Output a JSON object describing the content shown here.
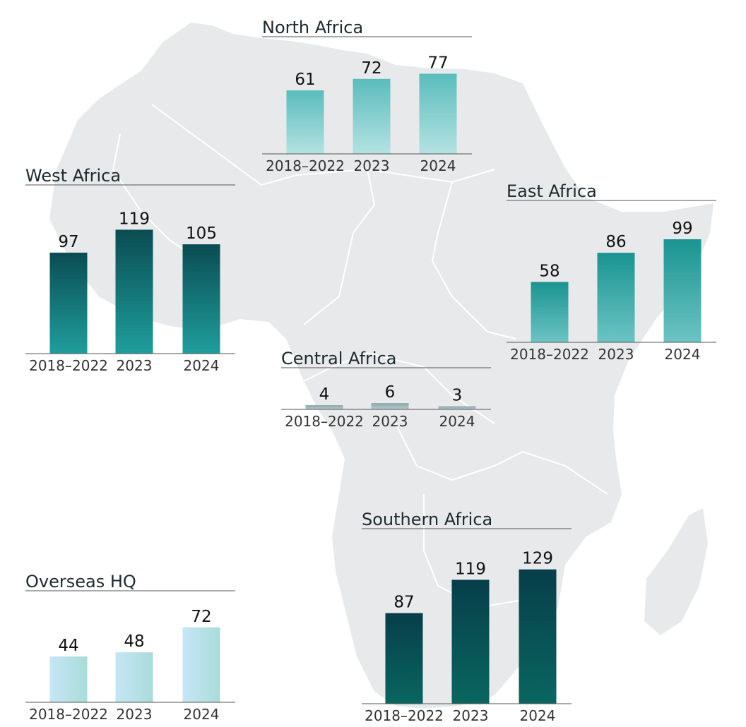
{
  "chart_data": [
    {
      "type": "bar",
      "title": "North Africa",
      "categories": [
        "2018–2022",
        "2023",
        "2024"
      ],
      "values": [
        61,
        72,
        77
      ],
      "value_labels": [
        "61",
        "72",
        "77"
      ],
      "gradient": [
        "#5bbcbc",
        "#b4e2e2"
      ]
    },
    {
      "type": "bar",
      "title": "West Africa",
      "categories": [
        "2018–2022",
        "2023",
        "2024"
      ],
      "values": [
        97,
        119,
        105
      ],
      "value_labels": [
        "97",
        "119",
        "105"
      ],
      "gradient": [
        "#0a4c52",
        "#1f9e9c"
      ]
    },
    {
      "type": "bar",
      "title": "East Africa",
      "categories": [
        "2018–2022",
        "2023",
        "2024"
      ],
      "values": [
        58,
        86,
        99
      ],
      "value_labels": [
        "58",
        "86",
        "99"
      ],
      "gradient": [
        "#1a9491",
        "#6cc4c3"
      ]
    },
    {
      "type": "bar",
      "title": "Central Africa",
      "categories": [
        "2018–2022",
        "2023",
        "2024"
      ],
      "values": [
        4,
        6,
        3
      ],
      "value_labels": [
        "4",
        "6",
        "3"
      ],
      "gradient": [
        "#8aa5a8",
        "#b9cccd"
      ]
    },
    {
      "type": "bar",
      "title": "Southern Africa",
      "categories": [
        "2018–2022",
        "2023",
        "2024"
      ],
      "values": [
        87,
        119,
        129
      ],
      "value_labels": [
        "87",
        "119",
        "129"
      ],
      "gradient": [
        "#073e4a",
        "#09665f"
      ]
    },
    {
      "type": "bar",
      "title": "Overseas HQ",
      "categories": [
        "2018–2022",
        "2023",
        "2024"
      ],
      "values": [
        44,
        48,
        72
      ],
      "value_labels": [
        "44",
        "48",
        "72"
      ],
      "gradient": [
        "#c6e6f6",
        "#a9dcd8"
      ],
      "gradient_direction": "horizontal"
    }
  ],
  "colors": {
    "map_fill": "#e8e9eb",
    "map_border": "#ffffff",
    "axis_line": "#555555",
    "text": "#111111"
  }
}
